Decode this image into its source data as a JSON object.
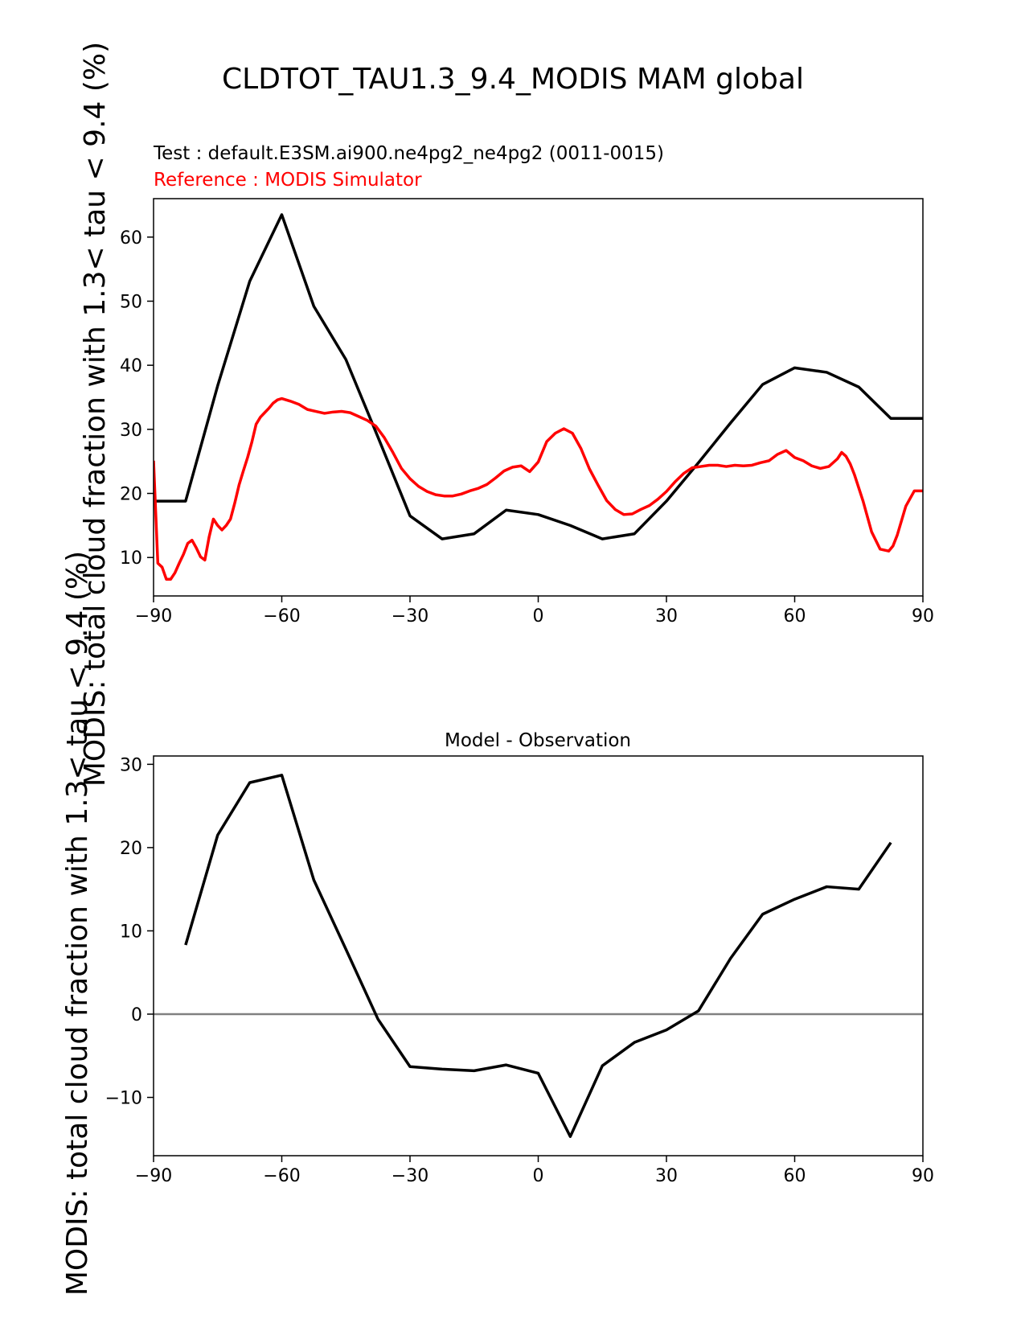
{
  "figure": {
    "title": "CLDTOT_TAU1.3_9.4_MODIS MAM global",
    "test_label": "Test : default.E3SM.ai900.ne4pg2_ne4pg2 (0011-0015)",
    "reference_label": "Reference : MODIS Simulator",
    "ylabel": "MODIS: total cloud fraction with 1.3< tau < 9.4 (%)",
    "colors": {
      "test": "#000000",
      "reference": "#ff0000",
      "zero_line": "#808080"
    }
  },
  "chart_data": [
    {
      "type": "line",
      "title": "",
      "xlabel": "",
      "ylabel": "MODIS: total cloud fraction with 1.3< tau < 9.4 (%)",
      "xlim": [
        -90,
        90
      ],
      "ylim": [
        4,
        66
      ],
      "xticks": [
        -90,
        -60,
        -30,
        0,
        30,
        60,
        90
      ],
      "yticks": [
        10,
        20,
        30,
        40,
        50,
        60
      ],
      "grid": false,
      "series": [
        {
          "name": "Test : default.E3SM.ai900.ne4pg2_ne4pg2 (0011-0015)",
          "color": "#000000",
          "x": [
            -90,
            -82.5,
            -75,
            -67.5,
            -60,
            -52.5,
            -45,
            -37.5,
            -30,
            -22.5,
            -15,
            -7.5,
            0,
            7.5,
            15,
            22.5,
            30,
            37.5,
            45,
            52.5,
            60,
            67.5,
            75,
            82.5,
            90
          ],
          "y": [
            18.8,
            18.8,
            36.8,
            53.1,
            63.5,
            49.2,
            40.9,
            28.8,
            16.5,
            12.9,
            13.7,
            17.4,
            16.7,
            15.0,
            12.9,
            13.7,
            18.8,
            24.8,
            31.0,
            37.0,
            39.6,
            38.9,
            36.6,
            31.7,
            31.7
          ]
        },
        {
          "name": "Reference : MODIS Simulator",
          "color": "#ff0000",
          "x": [
            -90,
            -89,
            -88,
            -87,
            -86,
            -85,
            -84,
            -83,
            -82,
            -81,
            -80,
            -79,
            -78,
            -77,
            -76,
            -75,
            -74,
            -73,
            -72,
            -71,
            -70,
            -69,
            -68,
            -67,
            -66,
            -65,
            -64,
            -63,
            -62,
            -61,
            -60,
            -58,
            -56,
            -54,
            -52,
            -50,
            -48,
            -46,
            -44,
            -42,
            -40,
            -38,
            -36,
            -34,
            -32,
            -30,
            -28,
            -26,
            -24,
            -22,
            -20,
            -18,
            -16,
            -14,
            -12,
            -10,
            -8,
            -6,
            -4,
            -2,
            0,
            2,
            4,
            6,
            8,
            10,
            12,
            14,
            16,
            18,
            20,
            22,
            24,
            26,
            28,
            30,
            32,
            34,
            36,
            38,
            40,
            42,
            44,
            46,
            48,
            50,
            52,
            54,
            56,
            58,
            60,
            62,
            64,
            66,
            68,
            70,
            71,
            72,
            73,
            74,
            76,
            78,
            80,
            82,
            83,
            84,
            86,
            88,
            89,
            90
          ],
          "y": [
            25.1,
            9.1,
            8.5,
            6.6,
            6.6,
            7.6,
            9.1,
            10.5,
            12.2,
            12.7,
            11.5,
            10.1,
            9.6,
            13.2,
            16.0,
            15.0,
            14.3,
            15.0,
            16.0,
            18.5,
            21.3,
            23.5,
            25.6,
            28.0,
            30.8,
            31.9,
            32.6,
            33.3,
            34.1,
            34.6,
            34.8,
            34.4,
            33.9,
            33.1,
            32.8,
            32.5,
            32.7,
            32.8,
            32.6,
            32.0,
            31.4,
            30.5,
            28.7,
            26.4,
            23.9,
            22.3,
            21.1,
            20.3,
            19.8,
            19.6,
            19.6,
            19.9,
            20.4,
            20.8,
            21.4,
            22.4,
            23.5,
            24.1,
            24.3,
            23.4,
            24.9,
            28.1,
            29.4,
            30.1,
            29.4,
            27.0,
            23.8,
            21.3,
            18.9,
            17.5,
            16.7,
            16.8,
            17.5,
            18.1,
            19.1,
            20.3,
            21.8,
            23.1,
            24.0,
            24.2,
            24.4,
            24.4,
            24.2,
            24.4,
            24.3,
            24.4,
            24.8,
            25.1,
            26.1,
            26.7,
            25.6,
            25.1,
            24.3,
            23.9,
            24.2,
            25.4,
            26.4,
            25.8,
            24.6,
            22.9,
            18.8,
            14.0,
            11.3,
            11.0,
            11.8,
            13.5,
            18.0,
            20.4,
            20.4,
            20.4
          ]
        }
      ]
    },
    {
      "type": "line",
      "title": "Model - Observation",
      "xlabel": "",
      "ylabel": "MODIS: total cloud fraction with 1.3< tau < 9.4 (%)",
      "xlim": [
        -90,
        90
      ],
      "ylim": [
        -17,
        31
      ],
      "xticks": [
        -90,
        -60,
        -30,
        0,
        30,
        60,
        90
      ],
      "yticks": [
        -10,
        0,
        10,
        20,
        30
      ],
      "grid": false,
      "zero_line": true,
      "series": [
        {
          "color": "#000000",
          "x": [
            -82.5,
            -75,
            -67.5,
            -60,
            -52.5,
            -45,
            -37.5,
            -30,
            -22.5,
            -15,
            -7.5,
            0,
            7.5,
            15,
            22.5,
            30,
            37.5,
            45,
            52.5,
            60,
            67.5,
            75,
            82.5
          ],
          "y": [
            8.3,
            21.5,
            27.8,
            28.7,
            16.1,
            7.8,
            -0.6,
            -6.3,
            -6.6,
            -6.8,
            -6.1,
            -7.1,
            -14.7,
            -6.2,
            -3.4,
            -1.9,
            0.4,
            6.7,
            12.0,
            13.8,
            15.3,
            15.0,
            20.6
          ]
        }
      ]
    }
  ]
}
